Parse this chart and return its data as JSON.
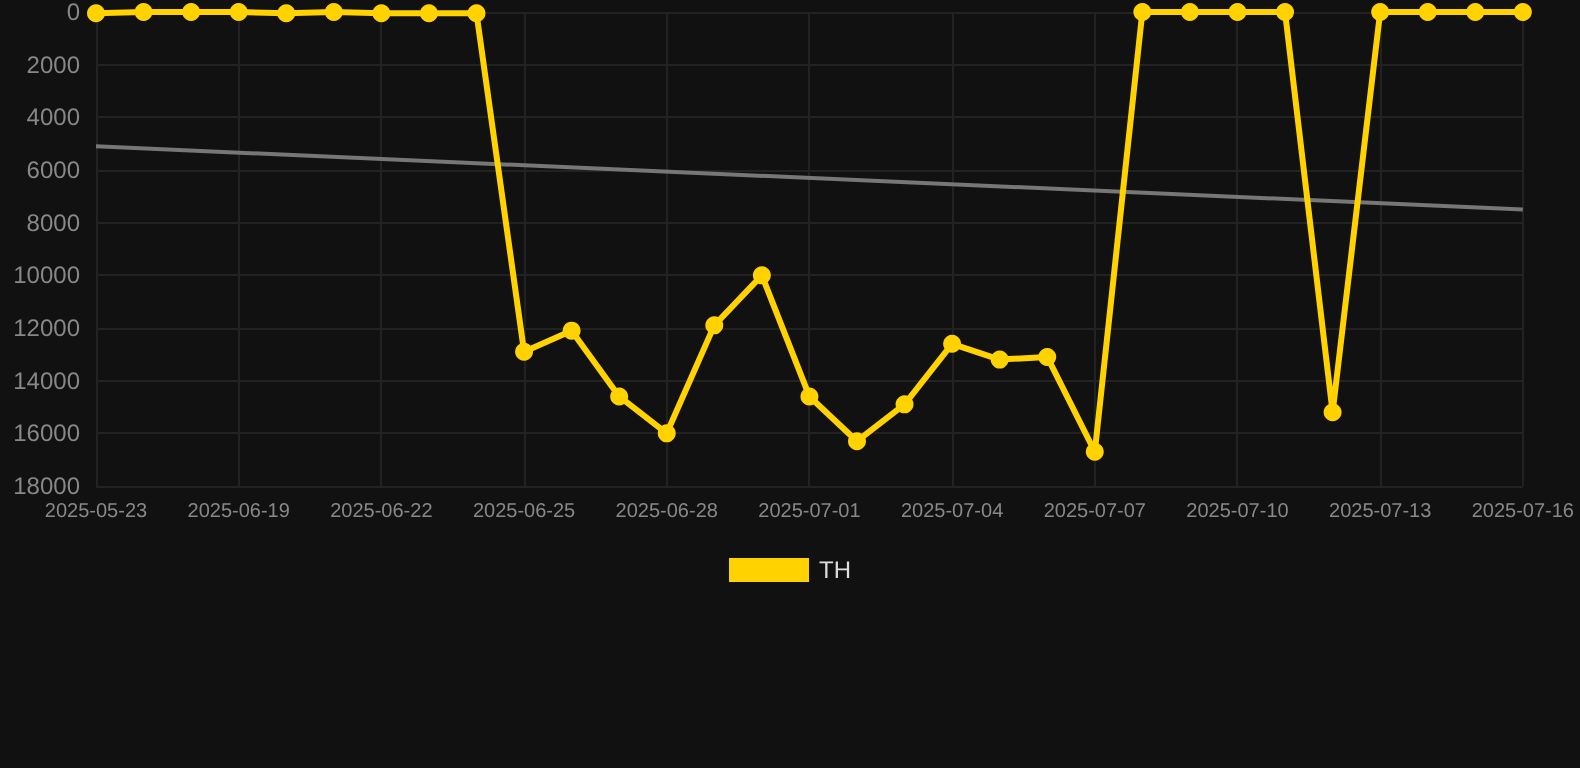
{
  "chart_data": {
    "type": "line",
    "categories": [
      "2025-05-23",
      null,
      null,
      "2025-06-19",
      null,
      null,
      "2025-06-22",
      null,
      null,
      "2025-06-25",
      null,
      null,
      "2025-06-28",
      null,
      null,
      "2025-07-01",
      null,
      null,
      "2025-07-04",
      null,
      null,
      "2025-07-07",
      null,
      null,
      "2025-07-10",
      null,
      null,
      "2025-07-13",
      null,
      null,
      "2025-07-16"
    ],
    "series": [
      {
        "name": "TH",
        "color": "#ffd200",
        "values": [
          50,
          0,
          0,
          0,
          50,
          0,
          50,
          50,
          50,
          12900,
          12100,
          14600,
          16000,
          11900,
          10000,
          14600,
          16300,
          14900,
          12600,
          13200,
          13100,
          16700,
          0,
          0,
          0,
          0,
          15200,
          0,
          0,
          0,
          0
        ]
      },
      {
        "type": "line",
        "marker": "none",
        "color": "#777777",
        "values": [
          5100,
          null,
          null,
          null,
          null,
          null,
          null,
          null,
          null,
          null,
          null,
          null,
          null,
          null,
          null,
          null,
          null,
          null,
          null,
          null,
          null,
          null,
          null,
          null,
          null,
          null,
          null,
          null,
          null,
          null,
          7500
        ]
      }
    ],
    "ylim": [
      18000,
      0
    ],
    "yticks": [
      0,
      2000,
      4000,
      6000,
      8000,
      10000,
      12000,
      14000,
      16000,
      18000
    ],
    "grid": true,
    "legend": "bottom",
    "marker": "circle"
  }
}
